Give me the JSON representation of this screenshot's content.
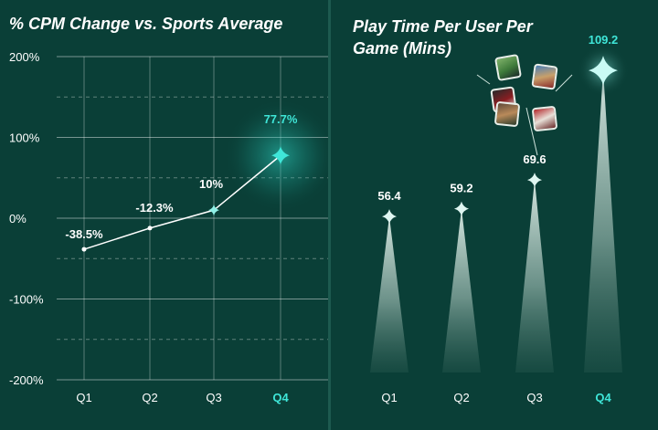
{
  "chart_data": [
    {
      "type": "line",
      "title": "% CPM Change vs. Sports Average",
      "categories": [
        "Q1",
        "Q2",
        "Q3",
        "Q4"
      ],
      "values": [
        -38.5,
        -12.3,
        10,
        77.7
      ],
      "labels": [
        "-38.5%",
        "-12.3%",
        "10%",
        "77.7%"
      ],
      "highlight_category": "Q4",
      "ylim": [
        -200,
        200
      ],
      "yticks": [
        200,
        100,
        0,
        -100,
        -200
      ],
      "ytick_labels": [
        "200%",
        "100%",
        "0%",
        "-100%",
        "-200%"
      ],
      "grid": "solid at labeled ticks, dashed at midpoints",
      "colors": {
        "line": "#ffffff",
        "highlight": "#3fe6d8",
        "grid": "#ffffff"
      }
    },
    {
      "type": "bar",
      "title": "Play Time Per User Per Game (Mins)",
      "categories": [
        "Q1",
        "Q2",
        "Q3",
        "Q4"
      ],
      "values": [
        56.4,
        59.2,
        69.6,
        109.2
      ],
      "labels": [
        "56.4",
        "59.2",
        "69.6",
        "109.2"
      ],
      "highlight_category": "Q4",
      "mark": "tapered light beam with star marker",
      "colors": {
        "bar": "#e6efe9",
        "highlight": "#3fe6d8"
      }
    }
  ],
  "game_thumbnails": [
    "soccer-game",
    "football-game",
    "basketball-game",
    "baseball-game",
    "racing-game"
  ]
}
